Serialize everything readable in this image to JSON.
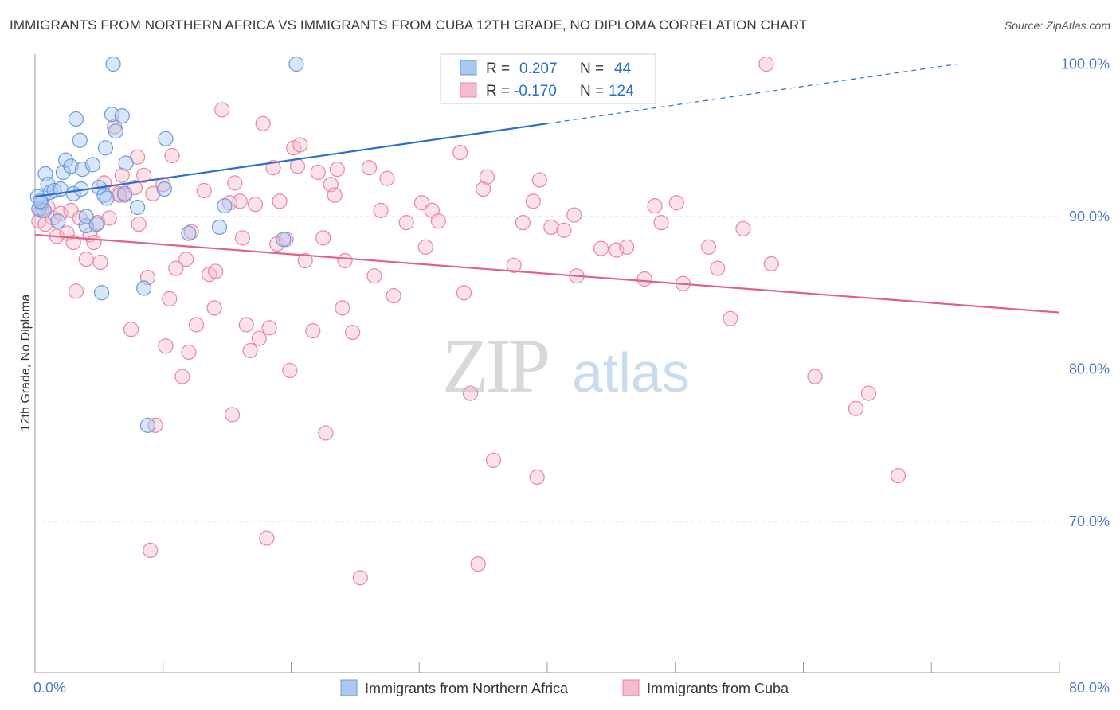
{
  "title": "IMMIGRANTS FROM NORTHERN AFRICA VS IMMIGRANTS FROM CUBA 12TH GRADE, NO DIPLOMA CORRELATION CHART",
  "source": "Source: ZipAtlas.com",
  "watermark": {
    "zip": "ZIP",
    "atlas": "atlas"
  },
  "colors": {
    "blue_fill": "#aac8f0",
    "blue_stroke": "#6b9ad8",
    "blue_line": "#2b6fcc",
    "pink_fill": "#f6bccd",
    "pink_stroke": "#e885a5",
    "pink_line": "#e0608c",
    "tick_text": "#4a7cc4",
    "grid": "#dddddd"
  },
  "stats": {
    "series1": {
      "r_label": "R =",
      "r_value": "0.207",
      "n_label": "N =",
      "n_value": "44"
    },
    "series2": {
      "r_label": "R =",
      "r_value": "-0.170",
      "n_label": "N =",
      "n_value": "124"
    }
  },
  "chart_data": {
    "type": "scatter",
    "title": "IMMIGRANTS FROM NORTHERN AFRICA VS IMMIGRANTS FROM CUBA 12TH GRADE, NO DIPLOMA CORRELATION CHART",
    "xlabel": "",
    "ylabel": "12th Grade, No Diploma",
    "xlim": [
      0,
      80
    ],
    "ylim": [
      60,
      103
    ],
    "x_tick_labels": [
      "0.0%",
      "80.0%"
    ],
    "y_ticks": [
      100,
      90,
      80,
      70
    ],
    "y_tick_labels": [
      "100.0%",
      "90.0%",
      "80.0%",
      "70.0%"
    ],
    "grid": true,
    "legend_position": "bottom",
    "series": [
      {
        "name": "Immigrants from Northern Africa",
        "color": "#aac8f0",
        "trend": {
          "x": [
            0,
            40
          ],
          "y": [
            91.3,
            96.1
          ],
          "dashed_to": [
            72,
            100
          ]
        },
        "points": [
          [
            0.2,
            91.3
          ],
          [
            0.3,
            90.5
          ],
          [
            0.5,
            90.9
          ],
          [
            0.7,
            90.4
          ],
          [
            0.8,
            92.8
          ],
          [
            1.0,
            92.1
          ],
          [
            1.2,
            91.6
          ],
          [
            1.5,
            91.7
          ],
          [
            1.8,
            89.7
          ],
          [
            2.0,
            91.8
          ],
          [
            2.2,
            92.9
          ],
          [
            2.4,
            93.7
          ],
          [
            2.8,
            93.3
          ],
          [
            3.0,
            91.5
          ],
          [
            3.2,
            96.4
          ],
          [
            3.5,
            95.0
          ],
          [
            3.6,
            91.8
          ],
          [
            3.7,
            93.1
          ],
          [
            4.0,
            89.4
          ],
          [
            4.0,
            90.0
          ],
          [
            4.5,
            93.4
          ],
          [
            4.8,
            89.5
          ],
          [
            5.0,
            91.9
          ],
          [
            5.2,
            85.0
          ],
          [
            5.4,
            91.4
          ],
          [
            5.5,
            94.5
          ],
          [
            5.6,
            91.2
          ],
          [
            6.0,
            96.7
          ],
          [
            6.1,
            100.0
          ],
          [
            6.3,
            95.6
          ],
          [
            6.8,
            96.6
          ],
          [
            7.0,
            91.5
          ],
          [
            7.1,
            93.5
          ],
          [
            8.0,
            90.6
          ],
          [
            8.5,
            85.3
          ],
          [
            8.8,
            76.3
          ],
          [
            10.1,
            91.8
          ],
          [
            10.2,
            95.1
          ],
          [
            12.0,
            88.9
          ],
          [
            14.4,
            89.3
          ],
          [
            14.8,
            90.7
          ],
          [
            19.4,
            88.5
          ],
          [
            20.4,
            100.0
          ],
          [
            0.4,
            91.0
          ]
        ]
      },
      {
        "name": "Immigrants from Cuba",
        "color": "#f6bccd",
        "trend": {
          "x": [
            0,
            80
          ],
          "y": [
            88.8,
            83.7
          ]
        },
        "points": [
          [
            0.3,
            89.7
          ],
          [
            0.5,
            90.4
          ],
          [
            1.0,
            90.6
          ],
          [
            1.4,
            89.9
          ],
          [
            1.7,
            88.7
          ],
          [
            2.0,
            90.2
          ],
          [
            2.5,
            88.9
          ],
          [
            2.8,
            90.4
          ],
          [
            3.0,
            88.3
          ],
          [
            3.2,
            85.1
          ],
          [
            3.5,
            89.9
          ],
          [
            4.0,
            87.2
          ],
          [
            4.3,
            88.8
          ],
          [
            4.6,
            88.3
          ],
          [
            4.9,
            89.6
          ],
          [
            5.1,
            87.0
          ],
          [
            5.4,
            92.2
          ],
          [
            5.8,
            89.9
          ],
          [
            6.2,
            95.9
          ],
          [
            6.5,
            91.5
          ],
          [
            6.8,
            92.7
          ],
          [
            7.0,
            91.4
          ],
          [
            7.5,
            82.6
          ],
          [
            7.8,
            91.9
          ],
          [
            8.0,
            93.9
          ],
          [
            8.1,
            89.5
          ],
          [
            8.5,
            92.7
          ],
          [
            8.8,
            86.0
          ],
          [
            9.0,
            68.1
          ],
          [
            9.2,
            91.5
          ],
          [
            9.4,
            76.3
          ],
          [
            10.0,
            92.1
          ],
          [
            10.2,
            81.5
          ],
          [
            10.5,
            84.6
          ],
          [
            10.7,
            94.0
          ],
          [
            11.0,
            86.6
          ],
          [
            11.5,
            79.5
          ],
          [
            11.8,
            87.2
          ],
          [
            12.0,
            81.1
          ],
          [
            12.2,
            89.0
          ],
          [
            12.6,
            82.9
          ],
          [
            13.2,
            91.7
          ],
          [
            13.6,
            86.2
          ],
          [
            14.0,
            84.0
          ],
          [
            14.1,
            86.4
          ],
          [
            14.6,
            97.0
          ],
          [
            15.2,
            90.9
          ],
          [
            15.4,
            77.0
          ],
          [
            15.6,
            92.2
          ],
          [
            16.0,
            91.0
          ],
          [
            16.2,
            88.6
          ],
          [
            16.5,
            82.9
          ],
          [
            16.8,
            81.2
          ],
          [
            17.2,
            90.8
          ],
          [
            17.5,
            82.0
          ],
          [
            17.8,
            96.1
          ],
          [
            18.1,
            68.9
          ],
          [
            18.3,
            82.7
          ],
          [
            18.6,
            93.2
          ],
          [
            18.9,
            88.2
          ],
          [
            19.1,
            91.0
          ],
          [
            19.6,
            88.5
          ],
          [
            19.9,
            79.9
          ],
          [
            20.2,
            94.5
          ],
          [
            20.5,
            93.3
          ],
          [
            20.7,
            94.7
          ],
          [
            21.1,
            87.1
          ],
          [
            21.7,
            82.5
          ],
          [
            22.1,
            92.9
          ],
          [
            22.5,
            88.6
          ],
          [
            22.7,
            75.8
          ],
          [
            23.1,
            92.1
          ],
          [
            23.4,
            91.4
          ],
          [
            23.6,
            93.1
          ],
          [
            24.0,
            84.0
          ],
          [
            24.2,
            87.1
          ],
          [
            24.8,
            82.4
          ],
          [
            25.4,
            66.3
          ],
          [
            26.1,
            93.2
          ],
          [
            26.5,
            86.1
          ],
          [
            27.0,
            90.4
          ],
          [
            27.5,
            92.5
          ],
          [
            28.0,
            84.8
          ],
          [
            29.0,
            89.6
          ],
          [
            30.2,
            90.9
          ],
          [
            30.5,
            88.0
          ],
          [
            31.0,
            90.4
          ],
          [
            31.5,
            89.7
          ],
          [
            33.2,
            94.2
          ],
          [
            33.5,
            85.0
          ],
          [
            34.0,
            78.4
          ],
          [
            34.6,
            67.2
          ],
          [
            35.0,
            91.8
          ],
          [
            35.3,
            92.6
          ],
          [
            35.8,
            74.0
          ],
          [
            37.4,
            86.8
          ],
          [
            38.1,
            89.6
          ],
          [
            38.9,
            91.0
          ],
          [
            39.2,
            72.9
          ],
          [
            39.4,
            92.4
          ],
          [
            40.3,
            89.3
          ],
          [
            41.3,
            89.1
          ],
          [
            42.1,
            90.1
          ],
          [
            42.3,
            86.1
          ],
          [
            44.2,
            87.9
          ],
          [
            45.4,
            87.8
          ],
          [
            46.2,
            88.0
          ],
          [
            47.6,
            85.9
          ],
          [
            48.4,
            90.7
          ],
          [
            48.9,
            89.6
          ],
          [
            50.1,
            90.9
          ],
          [
            50.6,
            85.6
          ],
          [
            52.6,
            88.0
          ],
          [
            53.3,
            86.6
          ],
          [
            54.3,
            83.3
          ],
          [
            55.3,
            89.2
          ],
          [
            57.1,
            100.0
          ],
          [
            57.5,
            86.9
          ],
          [
            60.9,
            79.5
          ],
          [
            64.1,
            77.4
          ],
          [
            65.1,
            78.4
          ],
          [
            67.4,
            73.0
          ],
          [
            0.8,
            89.5
          ],
          [
            6.6,
            91.4
          ]
        ]
      }
    ]
  },
  "legend": {
    "items": [
      {
        "label": "Immigrants from Northern Africa"
      },
      {
        "label": "Immigrants from Cuba"
      }
    ]
  }
}
